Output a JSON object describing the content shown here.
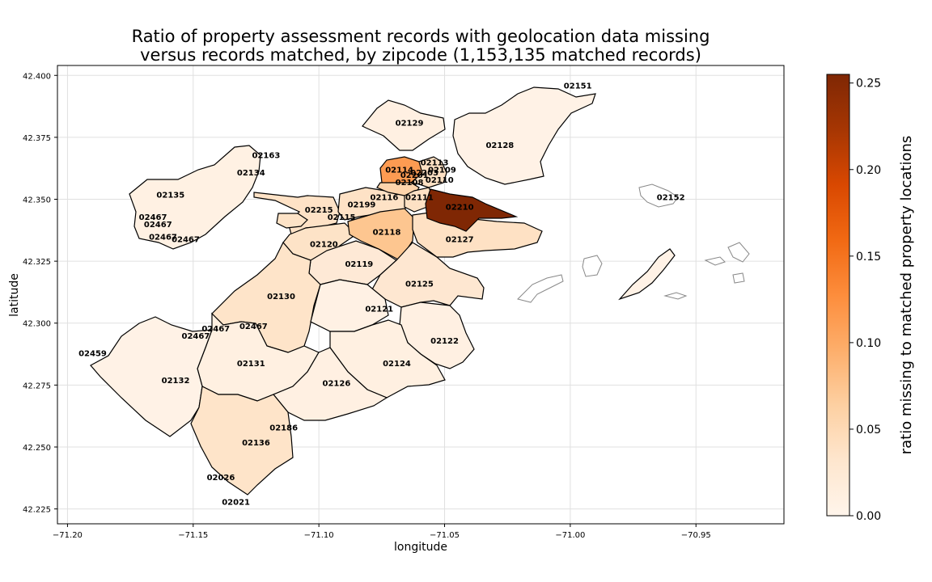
{
  "chart_data": {
    "type": "choropleth",
    "title_line1": "Ratio of property assessment records with geolocation data missing",
    "title_line2": "versus records matched, by zipcode (1,153,135 matched records)",
    "xlabel": "longitude",
    "ylabel": "latitude",
    "xlim": [
      -71.204,
      -70.915
    ],
    "ylim": [
      42.219,
      42.404
    ],
    "xticks": [
      -71.2,
      -71.15,
      -71.1,
      -71.05,
      -71.0,
      -70.95
    ],
    "xtick_labels": [
      "−71.20",
      "−71.15",
      "−71.10",
      "−71.05",
      "−71.00",
      "−70.95"
    ],
    "yticks": [
      42.225,
      42.25,
      42.275,
      42.3,
      42.325,
      42.35,
      42.375,
      42.4
    ],
    "ytick_labels": [
      "42.225",
      "42.250",
      "42.275",
      "42.300",
      "42.325",
      "42.350",
      "42.375",
      "42.400"
    ],
    "grid": true,
    "colorbar": {
      "label": "ratio missing to matched property locations",
      "range": [
        0,
        0.255
      ],
      "colormap": "Oranges",
      "ticks": [
        0.0,
        0.05,
        0.1,
        0.15,
        0.2,
        0.25
      ],
      "tick_labels": [
        "0.00",
        "0.05",
        "0.10",
        "0.15",
        "0.20",
        "0.25"
      ],
      "color_stops": [
        "#fff5eb",
        "#fee6ce",
        "#fdd0a2",
        "#fdae6b",
        "#fd8d3c",
        "#f16913",
        "#d94801",
        "#a63603",
        "#7f2704"
      ]
    },
    "zipcodes": [
      {
        "zip": "02151",
        "lon": -70.997,
        "lat": 42.396,
        "value": 0.005
      },
      {
        "zip": "02129",
        "lon": -71.064,
        "lat": 42.381,
        "value": 0.008
      },
      {
        "zip": "02128",
        "lon": -71.028,
        "lat": 42.372,
        "value": 0.01
      },
      {
        "zip": "02163",
        "lon": -71.121,
        "lat": 42.368,
        "value": 0.003
      },
      {
        "zip": "02134",
        "lon": -71.127,
        "lat": 42.361,
        "value": 0.006
      },
      {
        "zip": "02135",
        "lon": -71.159,
        "lat": 42.352,
        "value": 0.005
      },
      {
        "zip": "02114",
        "lon": -71.068,
        "lat": 42.362,
        "value": 0.12
      },
      {
        "zip": "02113",
        "lon": -71.054,
        "lat": 42.365,
        "value": 0.03
      },
      {
        "zip": "02109",
        "lon": -71.051,
        "lat": 42.362,
        "value": 0.04
      },
      {
        "zip": "02203",
        "lon": -71.058,
        "lat": 42.361,
        "value": 0.02
      },
      {
        "zip": "02201",
        "lon": -71.062,
        "lat": 42.36,
        "value": 0.02
      },
      {
        "zip": "02110",
        "lon": -71.052,
        "lat": 42.358,
        "value": 0.03
      },
      {
        "zip": "02108",
        "lon": -71.064,
        "lat": 42.357,
        "value": 0.05
      },
      {
        "zip": "02116",
        "lon": -71.074,
        "lat": 42.351,
        "value": 0.04
      },
      {
        "zip": "02111",
        "lon": -71.06,
        "lat": 42.351,
        "value": 0.04
      },
      {
        "zip": "02210",
        "lon": -71.044,
        "lat": 42.347,
        "value": 0.25
      },
      {
        "zip": "02152",
        "lon": -70.96,
        "lat": 42.351,
        "value": 0.003
      },
      {
        "zip": "02215",
        "lon": -71.1,
        "lat": 42.346,
        "value": 0.03
      },
      {
        "zip": "02199",
        "lon": -71.083,
        "lat": 42.348,
        "value": 0.03
      },
      {
        "zip": "02115",
        "lon": -71.091,
        "lat": 42.343,
        "value": 0.03
      },
      {
        "zip": "02467",
        "lon": -71.166,
        "lat": 42.343,
        "value": 0.005
      },
      {
        "zip": "02467",
        "lon": -71.164,
        "lat": 42.34,
        "value": 0.005
      },
      {
        "zip": "02467",
        "lon": -71.162,
        "lat": 42.335,
        "value": 0.005
      },
      {
        "zip": "02467",
        "lon": -71.153,
        "lat": 42.334,
        "value": 0.005
      },
      {
        "zip": "02118",
        "lon": -71.073,
        "lat": 42.337,
        "value": 0.07
      },
      {
        "zip": "02127",
        "lon": -71.044,
        "lat": 42.334,
        "value": 0.04
      },
      {
        "zip": "02120",
        "lon": -71.098,
        "lat": 42.332,
        "value": 0.03
      },
      {
        "zip": "02119",
        "lon": -71.084,
        "lat": 42.324,
        "value": 0.02
      },
      {
        "zip": "02125",
        "lon": -71.06,
        "lat": 42.316,
        "value": 0.02
      },
      {
        "zip": "02130",
        "lon": -71.115,
        "lat": 42.311,
        "value": 0.02
      },
      {
        "zip": "02121",
        "lon": -71.076,
        "lat": 42.306,
        "value": 0.015
      },
      {
        "zip": "02467",
        "lon": -71.141,
        "lat": 42.298,
        "value": 0.005
      },
      {
        "zip": "02467",
        "lon": -71.126,
        "lat": 42.299,
        "value": 0.005
      },
      {
        "zip": "02467",
        "lon": -71.149,
        "lat": 42.295,
        "value": 0.005
      },
      {
        "zip": "02122",
        "lon": -71.05,
        "lat": 42.293,
        "value": 0.015
      },
      {
        "zip": "02459",
        "lon": -71.19,
        "lat": 42.288,
        "value": 0.005
      },
      {
        "zip": "02131",
        "lon": -71.127,
        "lat": 42.284,
        "value": 0.02
      },
      {
        "zip": "02124",
        "lon": -71.069,
        "lat": 42.284,
        "value": 0.02
      },
      {
        "zip": "02132",
        "lon": -71.157,
        "lat": 42.277,
        "value": 0.01
      },
      {
        "zip": "02126",
        "lon": -71.093,
        "lat": 42.276,
        "value": 0.02
      },
      {
        "zip": "02186",
        "lon": -71.114,
        "lat": 42.258,
        "value": 0.005
      },
      {
        "zip": "02136",
        "lon": -71.125,
        "lat": 42.252,
        "value": 0.03
      },
      {
        "zip": "02026",
        "lon": -71.139,
        "lat": 42.238,
        "value": 0.005
      },
      {
        "zip": "02021",
        "lon": -71.133,
        "lat": 42.228,
        "value": 0.005
      }
    ]
  }
}
